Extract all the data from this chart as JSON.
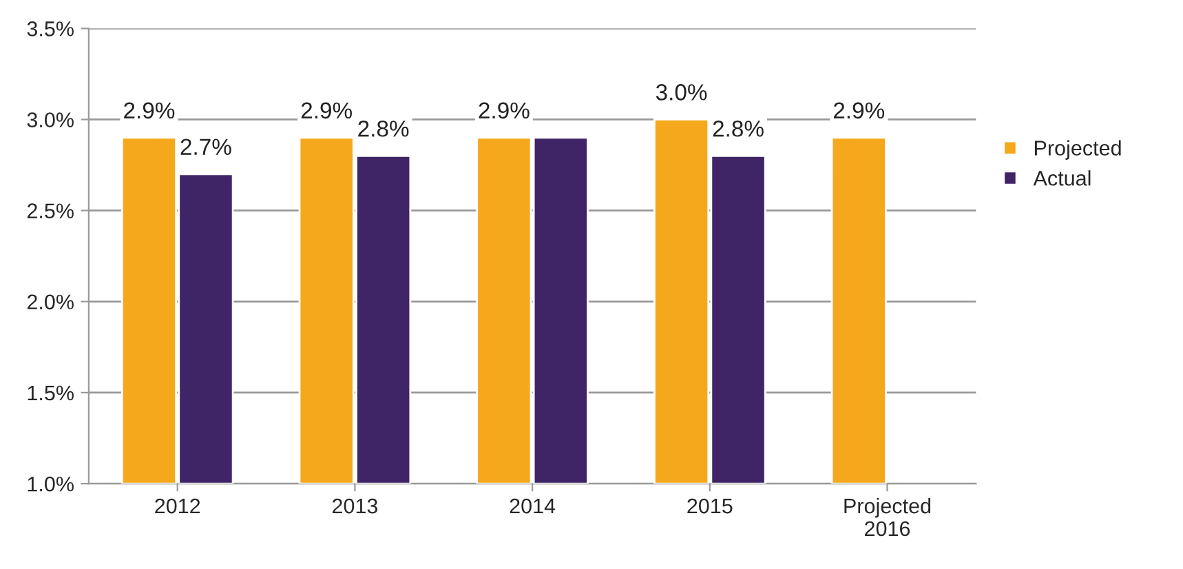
{
  "chart_data": {
    "type": "bar",
    "categories": [
      "2012",
      "2013",
      "2014",
      "2015",
      "Projected\n2016"
    ],
    "series": [
      {
        "name": "Projected",
        "color": "#f5a81c",
        "values": [
          2.9,
          2.9,
          2.9,
          3.0,
          2.9
        ],
        "value_labels": [
          "2.9%",
          "2.9%",
          "2.9%",
          "3.0%",
          "2.9%"
        ]
      },
      {
        "name": "Actual",
        "color": "#3f2466",
        "values": [
          2.7,
          2.8,
          2.9,
          2.8,
          null
        ],
        "value_labels": [
          "2.7%",
          "2.8%",
          null,
          "2.8%",
          null
        ]
      }
    ],
    "ylim": [
      1.0,
      3.5
    ],
    "yticks": [
      {
        "value": 1.0,
        "label": "1.0%"
      },
      {
        "value": 1.5,
        "label": "1.5%"
      },
      {
        "value": 2.0,
        "label": "2.0%"
      },
      {
        "value": 2.5,
        "label": "2.5%"
      },
      {
        "value": 3.0,
        "label": "3.0%"
      },
      {
        "value": 3.5,
        "label": "3.5%"
      }
    ],
    "grid": "y",
    "legend": "right"
  }
}
